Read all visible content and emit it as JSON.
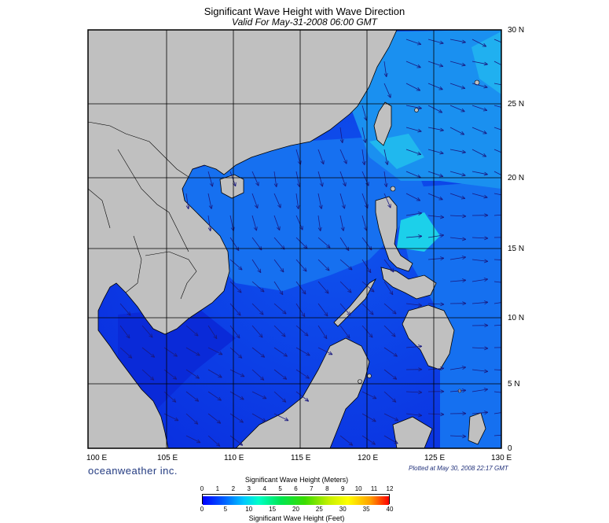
{
  "title": "Significant Wave Height with Wave Direction",
  "subtitle": "Valid For May-31-2008 06:00 GMT",
  "brand": "oceanweather inc.",
  "plotted": "Plotted at May 30, 2008 22:17 GMT",
  "lon_labels": [
    "100 E",
    "105 E",
    "110 E",
    "115 E",
    "120 E",
    "125 E",
    "130 E"
  ],
  "lat_labels": [
    "30 N",
    "25 N",
    "20 N",
    "15 N",
    "10 N",
    "5 N",
    "0"
  ],
  "colorbar": {
    "title_top": "Significant Wave Height (Meters)",
    "title_bottom": "Significant Wave Height (Feet)",
    "meters": [
      "0",
      "1",
      "2",
      "3",
      "4",
      "5",
      "6",
      "7",
      "8",
      "9",
      "10",
      "11",
      "12"
    ],
    "feet": [
      "0",
      "5",
      "10",
      "15",
      "20",
      "25",
      "30",
      "35",
      "40"
    ]
  },
  "colors": {
    "land": "#c0c0c0",
    "water_low": "#0a32e6",
    "water_mid": "#1a8cf0",
    "water_high": "#1cd4e8",
    "arrow": "#1a1a80"
  }
}
